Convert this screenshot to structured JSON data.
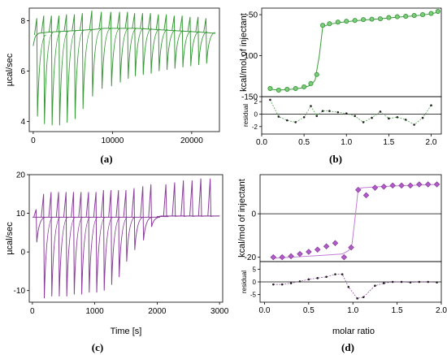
{
  "colors": {
    "green": "#3a9a3a",
    "green_fill": "#7ecb7e",
    "purple": "#8a3f9a",
    "purple_fill": "#b25ccc",
    "purple_line": "#c27fd6"
  },
  "labels": {
    "a": "(a)",
    "b": "(b)",
    "c": "(c)",
    "d": "(d)",
    "time": "Time [s]",
    "molar": "molar ratio"
  },
  "chart_data": [
    {
      "id": "a",
      "type": "line",
      "ylabel": "µcal/sec",
      "xlabel": "",
      "xlim": [
        -500,
        23500
      ],
      "ylim": [
        3.6,
        8.5
      ],
      "xticks": [
        {
          "v": 0,
          "label": "0"
        },
        {
          "v": 10000,
          "label": "10000"
        },
        {
          "v": 20000,
          "label": "20000"
        }
      ],
      "yticks": [
        {
          "v": 4,
          "label": "4"
        },
        {
          "v": 6,
          "label": "6"
        },
        {
          "v": 8,
          "label": "8"
        }
      ],
      "baseline": [
        [
          0,
          7.0
        ],
        [
          150,
          7.25
        ],
        [
          300,
          7.4
        ],
        [
          700,
          7.5
        ],
        [
          2000,
          7.55
        ],
        [
          5000,
          7.6
        ],
        [
          7500,
          7.65
        ],
        [
          9000,
          7.7
        ],
        [
          13000,
          7.7
        ],
        [
          17000,
          7.62
        ],
        [
          21000,
          7.55
        ],
        [
          23000,
          7.5
        ]
      ],
      "injections": [
        {
          "x": 450,
          "top": 8.1,
          "bot": 4.2
        },
        {
          "x": 1330,
          "top": 8.2,
          "bot": 3.9
        },
        {
          "x": 2300,
          "top": 8.2,
          "bot": 3.85
        },
        {
          "x": 3250,
          "top": 8.2,
          "bot": 3.85
        },
        {
          "x": 4200,
          "top": 8.25,
          "bot": 3.95
        },
        {
          "x": 5200,
          "top": 8.25,
          "bot": 4.1
        },
        {
          "x": 6200,
          "top": 8.3,
          "bot": 4.5
        },
        {
          "x": 7400,
          "top": 8.4,
          "bot": 5.0
        },
        {
          "x": 8600,
          "top": 8.35,
          "bot": 5.3
        },
        {
          "x": 9800,
          "top": 8.35,
          "bot": 5.4
        },
        {
          "x": 10900,
          "top": 8.35,
          "bot": 5.55
        },
        {
          "x": 11900,
          "top": 8.35,
          "bot": 5.7
        },
        {
          "x": 12800,
          "top": 8.3,
          "bot": 5.8
        },
        {
          "x": 13800,
          "top": 8.3,
          "bot": 5.85
        },
        {
          "x": 14800,
          "top": 8.3,
          "bot": 5.9
        },
        {
          "x": 15800,
          "top": 8.25,
          "bot": 6.0
        },
        {
          "x": 16800,
          "top": 8.25,
          "bot": 6.05
        },
        {
          "x": 17800,
          "top": 8.2,
          "bot": 6.1
        },
        {
          "x": 18800,
          "top": 8.2,
          "bot": 6.15
        },
        {
          "x": 19800,
          "top": 8.15,
          "bot": 6.2
        },
        {
          "x": 20800,
          "top": 8.15,
          "bot": 6.25
        },
        {
          "x": 21800,
          "top": 8.1,
          "bot": 6.3
        }
      ]
    },
    {
      "id": "b",
      "type": "scatter",
      "ylabel": "kcal/mol of injectant",
      "xlim": [
        0,
        2.12
      ],
      "ylim": [
        -150,
        -42
      ],
      "yticks": [
        {
          "v": -50,
          "label": "-50"
        },
        {
          "v": -100,
          "label": "-100"
        },
        {
          "v": -150,
          "label": "-150"
        }
      ],
      "points": [
        [
          0.1,
          -140
        ],
        [
          0.2,
          -142
        ],
        [
          0.3,
          -141
        ],
        [
          0.4,
          -140
        ],
        [
          0.5,
          -138
        ],
        [
          0.58,
          -134
        ],
        [
          0.65,
          -123
        ],
        [
          0.72,
          -63
        ],
        [
          0.8,
          -61
        ],
        [
          0.9,
          -59
        ],
        [
          1.0,
          -58
        ],
        [
          1.1,
          -57
        ],
        [
          1.2,
          -56
        ],
        [
          1.3,
          -55.5
        ],
        [
          1.4,
          -55
        ],
        [
          1.5,
          -53.5
        ],
        [
          1.6,
          -52.5
        ],
        [
          1.7,
          -52
        ],
        [
          1.8,
          -51
        ],
        [
          1.9,
          -50
        ],
        [
          2.0,
          -48.5
        ],
        [
          2.08,
          -46
        ]
      ],
      "fit": [
        [
          0.1,
          -141
        ],
        [
          0.2,
          -142
        ],
        [
          0.3,
          -141.5
        ],
        [
          0.4,
          -140.5
        ],
        [
          0.5,
          -139
        ],
        [
          0.58,
          -136
        ],
        [
          0.63,
          -130
        ],
        [
          0.68,
          -100
        ],
        [
          0.72,
          -65
        ],
        [
          0.8,
          -61.5
        ],
        [
          1.0,
          -58.5
        ],
        [
          1.2,
          -56.5
        ],
        [
          1.4,
          -55
        ],
        [
          1.6,
          -53
        ],
        [
          1.8,
          -51.5
        ],
        [
          2.0,
          -49
        ],
        [
          2.08,
          -47
        ]
      ],
      "residual": {
        "ylabel": "residual",
        "ylim": [
          -3.2,
          2.8
        ],
        "yticks": [
          {
            "v": 2,
            "label": "2"
          },
          {
            "v": 0,
            "label": "0"
          },
          {
            "v": -2,
            "label": "-2"
          }
        ],
        "xticks": [
          {
            "v": 0.0,
            "label": "0.0"
          },
          {
            "v": 0.5,
            "label": "0.5"
          },
          {
            "v": 1.0,
            "label": "1.0"
          },
          {
            "v": 1.5,
            "label": "1.5"
          },
          {
            "v": 2.0,
            "label": "2.0"
          }
        ],
        "points": [
          [
            0.1,
            2.3
          ],
          [
            0.2,
            -0.4
          ],
          [
            0.3,
            -1.0
          ],
          [
            0.4,
            -1.3
          ],
          [
            0.5,
            -0.5
          ],
          [
            0.58,
            1.3
          ],
          [
            0.65,
            -0.3
          ],
          [
            0.72,
            0.5
          ],
          [
            0.8,
            0.5
          ],
          [
            0.9,
            0.3
          ],
          [
            1.0,
            0.1
          ],
          [
            1.1,
            -0.3
          ],
          [
            1.2,
            -1.3
          ],
          [
            1.3,
            -0.6
          ],
          [
            1.4,
            0.4
          ],
          [
            1.5,
            -0.7
          ],
          [
            1.6,
            -0.5
          ],
          [
            1.7,
            -0.9
          ],
          [
            1.8,
            -1.7
          ],
          [
            1.9,
            -0.6
          ],
          [
            2.0,
            1.4
          ]
        ]
      }
    },
    {
      "id": "c",
      "type": "line",
      "ylabel": "µcal/sec",
      "xlabel": "Time [s]",
      "xlim": [
        -50,
        3050
      ],
      "ylim": [
        -13,
        20
      ],
      "xticks": [
        {
          "v": 0,
          "label": "0"
        },
        {
          "v": 1000,
          "label": "1000"
        },
        {
          "v": 2000,
          "label": "2000"
        },
        {
          "v": 3000,
          "label": "3000"
        }
      ],
      "yticks": [
        {
          "v": 20,
          "label": "20"
        },
        {
          "v": 10,
          "label": "10"
        },
        {
          "v": 0,
          "label": "0"
        },
        {
          "v": -10,
          "label": "-10"
        }
      ],
      "baseline": [
        [
          0,
          9.0
        ],
        [
          2000,
          9.0
        ],
        [
          2060,
          9.3
        ],
        [
          3000,
          9.3
        ]
      ],
      "injections": [
        {
          "x": 60,
          "top": 11,
          "bot": 2.5
        },
        {
          "x": 180,
          "top": 15,
          "bot": -12
        },
        {
          "x": 300,
          "top": 15.5,
          "bot": -11.5
        },
        {
          "x": 420,
          "top": 15.5,
          "bot": -11.5
        },
        {
          "x": 540,
          "top": 15.5,
          "bot": -11.5
        },
        {
          "x": 660,
          "top": 15.5,
          "bot": -11
        },
        {
          "x": 780,
          "top": 15.5,
          "bot": -11
        },
        {
          "x": 900,
          "top": 15.5,
          "bot": -10.5
        },
        {
          "x": 1020,
          "top": 15.5,
          "bot": -10.5
        },
        {
          "x": 1140,
          "top": 16,
          "bot": -10
        },
        {
          "x": 1260,
          "top": 16,
          "bot": -8.5
        },
        {
          "x": 1380,
          "top": 16,
          "bot": -6.5
        },
        {
          "x": 1500,
          "top": 16,
          "bot": -2.5
        },
        {
          "x": 1630,
          "top": 16.5,
          "bot": 0.5
        },
        {
          "x": 1770,
          "top": 17,
          "bot": 3
        },
        {
          "x": 1900,
          "top": 17.5,
          "bot": 6.5
        },
        {
          "x": 2030,
          "top": 9.2,
          "bot": 9.2
        },
        {
          "x": 2140,
          "top": 17.5,
          "bot": 9.2
        },
        {
          "x": 2280,
          "top": 18,
          "bot": 9.2
        },
        {
          "x": 2420,
          "top": 18.5,
          "bot": 9.2
        },
        {
          "x": 2560,
          "top": 18.5,
          "bot": 9.2
        },
        {
          "x": 2700,
          "top": 19,
          "bot": 9.2
        },
        {
          "x": 2850,
          "top": 19,
          "bot": 9.2
        }
      ]
    },
    {
      "id": "d",
      "type": "scatter",
      "ylabel": "kcal/mol of injectant",
      "xlim": [
        -0.05,
        2.0
      ],
      "ylim": [
        -22,
        18
      ],
      "yticks": [
        {
          "v": 0,
          "label": "0"
        },
        {
          "v": -20,
          "label": "-20"
        }
      ],
      "points": [
        [
          0.1,
          -20
        ],
        [
          0.2,
          -20
        ],
        [
          0.3,
          -19.5
        ],
        [
          0.4,
          -18.5
        ],
        [
          0.5,
          -17.5
        ],
        [
          0.6,
          -16.5
        ],
        [
          0.7,
          -15
        ],
        [
          0.8,
          -13.5
        ],
        [
          0.9,
          -20
        ],
        [
          0.98,
          -15.5
        ],
        [
          1.06,
          11
        ],
        [
          1.15,
          8.5
        ],
        [
          1.25,
          12
        ],
        [
          1.35,
          12.5
        ],
        [
          1.45,
          13
        ],
        [
          1.55,
          13
        ],
        [
          1.65,
          13
        ],
        [
          1.75,
          13.5
        ],
        [
          1.85,
          13.5
        ],
        [
          1.95,
          13.5
        ]
      ],
      "fit": [
        [
          0.1,
          -20.5
        ],
        [
          0.3,
          -20
        ],
        [
          0.5,
          -19.5
        ],
        [
          0.7,
          -19
        ],
        [
          0.88,
          -18.5
        ],
        [
          0.95,
          -17
        ],
        [
          0.99,
          -14
        ],
        [
          1.03,
          0
        ],
        [
          1.06,
          11.5
        ],
        [
          1.12,
          12
        ],
        [
          1.3,
          12.5
        ],
        [
          1.6,
          13
        ],
        [
          1.95,
          13.5
        ]
      ],
      "residual": {
        "ylabel": "residual",
        "ylim": [
          -8,
          8
        ],
        "yticks": [
          {
            "v": 5,
            "label": "5"
          },
          {
            "v": 0,
            "label": "0"
          },
          {
            "v": -5,
            "label": "-5"
          }
        ],
        "xticks": [
          {
            "v": 0.0,
            "label": "0.0"
          },
          {
            "v": 0.5,
            "label": "0.5"
          },
          {
            "v": 1.0,
            "label": "1.0"
          },
          {
            "v": 1.5,
            "label": "1.5"
          },
          {
            "v": 2.0,
            "label": "2.0"
          }
        ],
        "points": [
          [
            0.1,
            -1.0
          ],
          [
            0.2,
            -1.0
          ],
          [
            0.3,
            -0.5
          ],
          [
            0.4,
            0.2
          ],
          [
            0.5,
            1.0
          ],
          [
            0.6,
            1.5
          ],
          [
            0.7,
            2.0
          ],
          [
            0.8,
            3.0
          ],
          [
            0.88,
            3.0
          ],
          [
            0.95,
            -2.0
          ],
          [
            1.05,
            -6.5
          ],
          [
            1.12,
            -6.0
          ],
          [
            1.25,
            -1.5
          ],
          [
            1.35,
            -0.5
          ],
          [
            1.45,
            0
          ],
          [
            1.55,
            0
          ],
          [
            1.65,
            -0.2
          ],
          [
            1.75,
            0
          ],
          [
            1.85,
            0
          ],
          [
            1.95,
            -0.2
          ]
        ]
      }
    }
  ]
}
